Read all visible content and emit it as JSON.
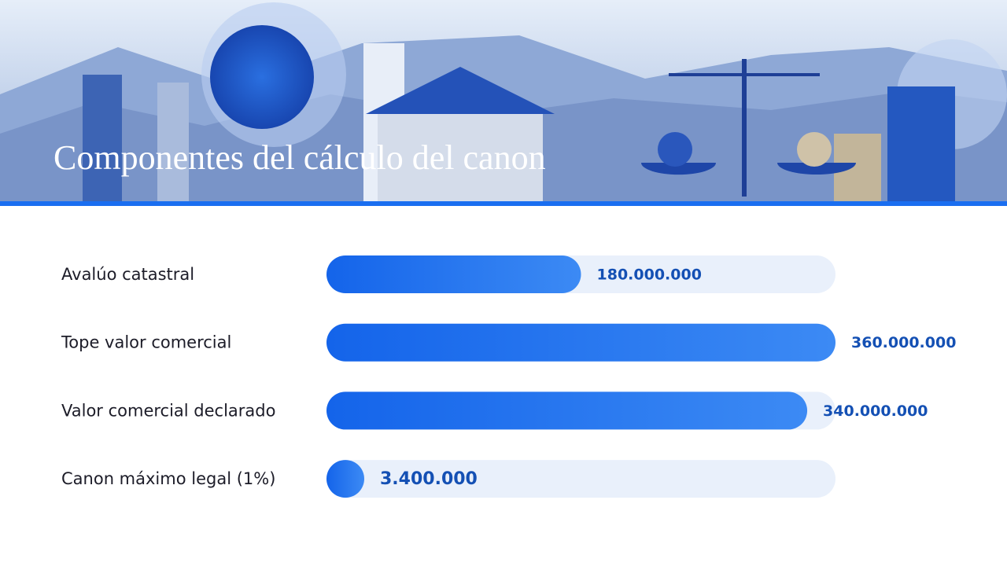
{
  "chart_data": {
    "type": "bar",
    "orientation": "horizontal",
    "title": "Componentes del cálculo del canon",
    "categories": [
      "Avalúo catastral",
      "Tope valor comercial",
      "Valor comercial declarado",
      "Canon máximo legal (1%)"
    ],
    "values": [
      180000000,
      360000000,
      340000000,
      3400000
    ],
    "value_labels": [
      "180.000.000",
      "360.000.000",
      "340.000.000",
      "3.400.000"
    ],
    "color": "#1a6ef0",
    "xlim": [
      0,
      360000000
    ]
  }
}
